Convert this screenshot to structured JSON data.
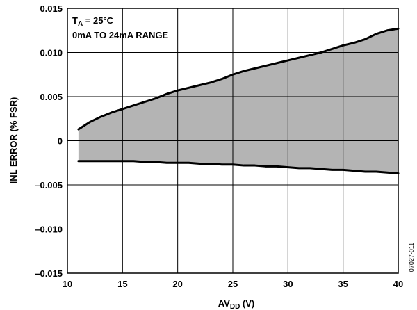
{
  "chart_data": {
    "type": "area",
    "xlabel_main": "AV",
    "xlabel_sub": "DD",
    "xlabel_unit": " (V)",
    "ylabel": "INL ERROR (% FSR)",
    "xlim": [
      10,
      40
    ],
    "ylim": [
      -0.015,
      0.015
    ],
    "x_ticks": [
      10,
      15,
      20,
      25,
      30,
      35,
      40
    ],
    "x_tick_labels": [
      "10",
      "15",
      "20",
      "25",
      "30",
      "35",
      "40"
    ],
    "y_ticks": [
      0.015,
      0.01,
      0.005,
      0,
      -0.005,
      -0.01,
      -0.015
    ],
    "y_tick_labels": [
      "0.015",
      "0.010",
      "0.005",
      "0",
      "–0.005",
      "–0.010",
      "–0.015"
    ],
    "grid": true,
    "fill_color": "#b4b4b4",
    "line_color": "#000000",
    "annotations": {
      "line1_main": "T",
      "line1_sub": "A",
      "line1_rest": " = 25°C",
      "line2": "0mA TO 24mA RANGE"
    },
    "figure_code": "07027-011",
    "series": [
      {
        "x": [
          11,
          12,
          13,
          14,
          15,
          16,
          17,
          18,
          19,
          20,
          21,
          22,
          23,
          24,
          25,
          26,
          27,
          28,
          29,
          30,
          31,
          32,
          33,
          34,
          35,
          36,
          37,
          38,
          39,
          40
        ],
        "values": [
          0.0013,
          0.0021,
          0.0027,
          0.0032,
          0.0036,
          0.004,
          0.0044,
          0.0048,
          0.0053,
          0.0057,
          0.006,
          0.0063,
          0.0066,
          0.007,
          0.0075,
          0.0079,
          0.0082,
          0.0085,
          0.0088,
          0.0091,
          0.0094,
          0.0097,
          0.01,
          0.0104,
          0.0108,
          0.0111,
          0.0115,
          0.0121,
          0.0125,
          0.0127
        ]
      },
      {
        "x": [
          11,
          12,
          13,
          14,
          15,
          16,
          17,
          18,
          19,
          20,
          21,
          22,
          23,
          24,
          25,
          26,
          27,
          28,
          29,
          30,
          31,
          32,
          33,
          34,
          35,
          36,
          37,
          38,
          39,
          40
        ],
        "values": [
          -0.0023,
          -0.0023,
          -0.0023,
          -0.0023,
          -0.0023,
          -0.0023,
          -0.0024,
          -0.0024,
          -0.0025,
          -0.0025,
          -0.0025,
          -0.0026,
          -0.0026,
          -0.0027,
          -0.0027,
          -0.0028,
          -0.0028,
          -0.0029,
          -0.0029,
          -0.003,
          -0.0031,
          -0.0031,
          -0.0032,
          -0.0033,
          -0.0033,
          -0.0034,
          -0.0035,
          -0.0035,
          -0.0036,
          -0.0037
        ]
      }
    ]
  }
}
